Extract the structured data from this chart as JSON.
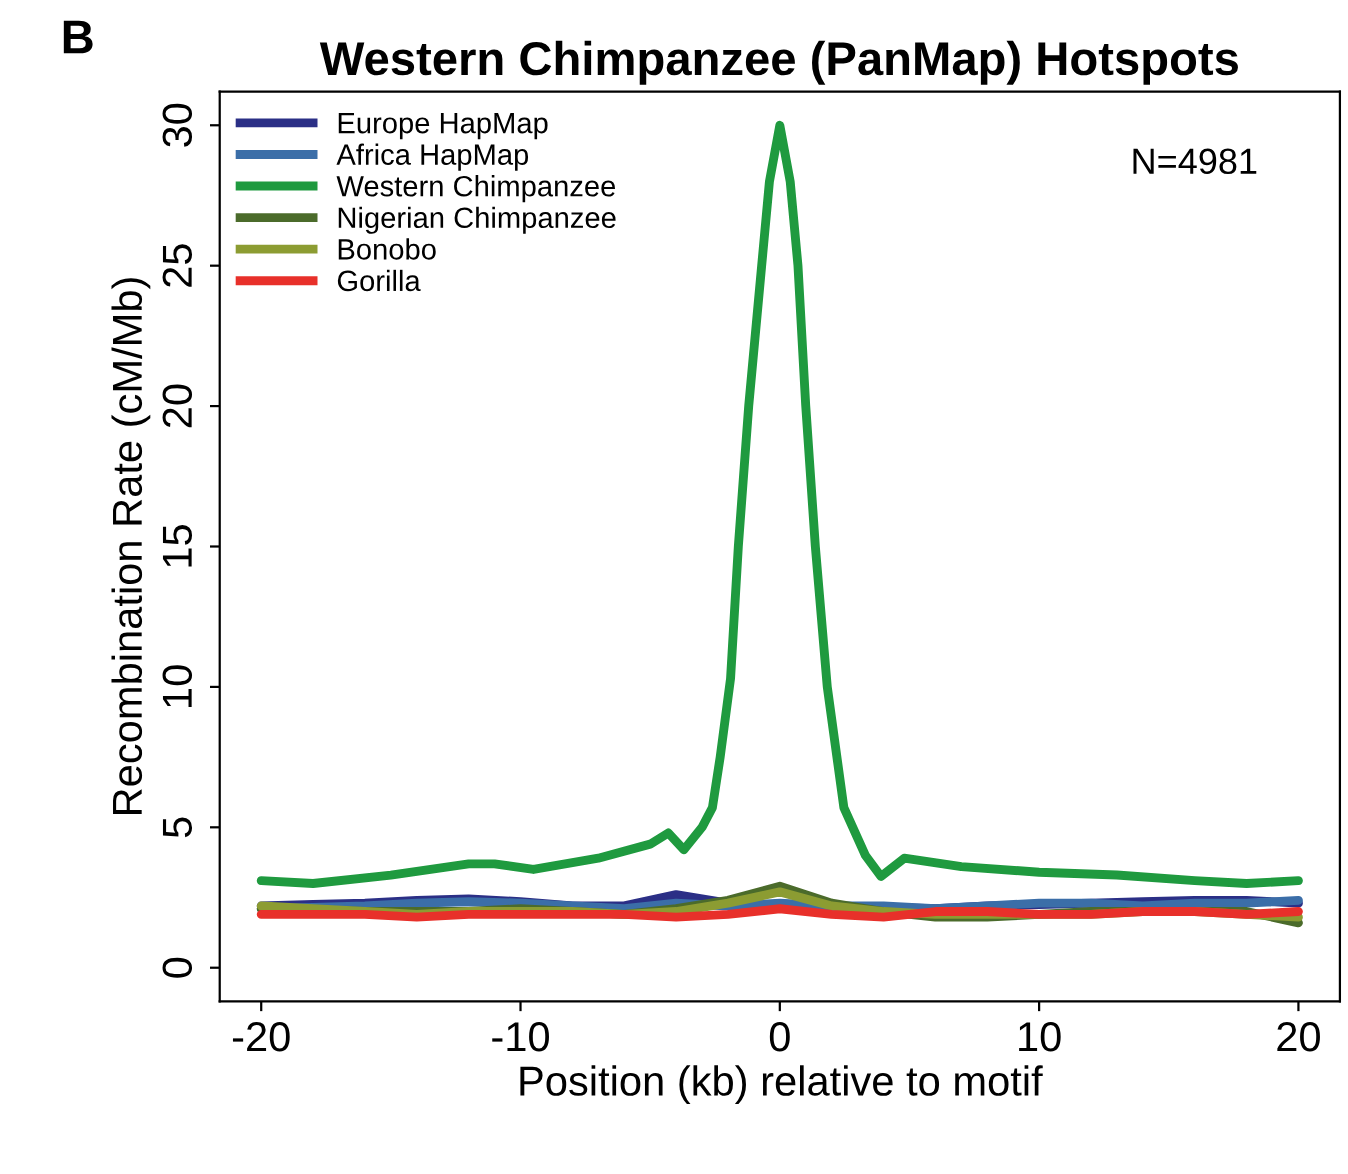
{
  "chart_data": {
    "type": "line",
    "title": "Western Chimpanzee (PanMap) Hotspots",
    "xlabel": "Position (kb) relative to motif",
    "ylabel": "Recombination Rate (cM/Mb)",
    "annotations": [
      "B",
      "N=4981"
    ],
    "xlim": [
      -21.6,
      21.6
    ],
    "ylim": [
      -1.2,
      31.2
    ],
    "xticks": [
      -20,
      -10,
      0,
      10,
      20
    ],
    "yticks": [
      0,
      5,
      10,
      15,
      20,
      25,
      30
    ],
    "grid": false,
    "legend": "top left",
    "line_style": "solid",
    "marker": "none",
    "series": [
      {
        "name": "Europe HapMap",
        "color": "#2b2f86",
        "x": [
          -20,
          -18,
          -16,
          -14,
          -12,
          -10,
          -8,
          -6,
          -4,
          -2,
          0,
          2,
          4,
          6,
          8,
          10,
          12,
          14,
          16,
          18,
          20
        ],
        "values": [
          2.2,
          2.25,
          2.3,
          2.4,
          2.45,
          2.35,
          2.2,
          2.2,
          2.6,
          2.3,
          2.2,
          2.2,
          2.15,
          2.1,
          2.2,
          2.25,
          2.3,
          2.35,
          2.4,
          2.4,
          2.3
        ]
      },
      {
        "name": "Africa HapMap",
        "color": "#3b6ea8",
        "x": [
          -20,
          -18,
          -16,
          -14,
          -12,
          -10,
          -8,
          -6,
          -4,
          -2,
          0,
          2,
          4,
          6,
          8,
          10,
          12,
          14,
          16,
          18,
          20
        ],
        "values": [
          2.1,
          2.15,
          2.2,
          2.3,
          2.35,
          2.3,
          2.2,
          2.1,
          2.3,
          2.2,
          2.3,
          2.2,
          2.2,
          2.1,
          2.2,
          2.3,
          2.3,
          2.2,
          2.3,
          2.3,
          2.4
        ]
      },
      {
        "name": "Western Chimpanzee",
        "color": "#1f9a3f",
        "x": [
          -20,
          -18,
          -15,
          -12,
          -11,
          -9.5,
          -7,
          -5,
          -4.3,
          -3.7,
          -3,
          -2.6,
          -2.3,
          -1.9,
          -1.6,
          -1.2,
          -0.7,
          -0.4,
          0,
          0.4,
          0.7,
          1.0,
          1.37,
          1.83,
          2.47,
          3.3,
          3.9,
          4.8,
          7,
          10,
          13,
          16,
          18,
          20
        ],
        "values": [
          3.1,
          3.0,
          3.3,
          3.7,
          3.7,
          3.5,
          3.9,
          4.4,
          4.8,
          4.2,
          5.0,
          5.7,
          7.5,
          10.3,
          15,
          20,
          25,
          28,
          30,
          28,
          25,
          20,
          15,
          10,
          5.7,
          4.0,
          3.25,
          3.9,
          3.6,
          3.4,
          3.3,
          3.1,
          3.0,
          3.1
        ]
      },
      {
        "name": "Nigerian Chimpanzee",
        "color": "#4b6b2b",
        "x": [
          -20,
          -18,
          -16,
          -14,
          -12,
          -10,
          -8,
          -6,
          -4,
          -2,
          0,
          2,
          4,
          6,
          8,
          10,
          12,
          14,
          16,
          18,
          20
        ],
        "values": [
          2.1,
          2.05,
          2.0,
          2.0,
          2.0,
          2.1,
          2.0,
          1.9,
          2.1,
          2.4,
          2.9,
          2.3,
          2.0,
          1.8,
          1.8,
          1.9,
          2.0,
          2.0,
          2.0,
          2.0,
          1.6
        ]
      },
      {
        "name": "Bonobo",
        "color": "#8c9c32",
        "x": [
          -20,
          -18,
          -16,
          -14,
          -12,
          -10,
          -8,
          -6,
          -4,
          -2,
          0,
          2,
          4,
          6,
          8,
          10,
          12,
          14,
          16,
          18,
          20
        ],
        "values": [
          2.2,
          2.1,
          2.0,
          1.9,
          2.0,
          2.0,
          2.0,
          1.9,
          2.0,
          2.3,
          2.7,
          2.2,
          2.0,
          1.9,
          1.9,
          1.9,
          1.9,
          2.0,
          2.0,
          1.9,
          1.8
        ]
      },
      {
        "name": "Gorilla",
        "color": "#e8302a",
        "x": [
          -20,
          -18,
          -16,
          -14,
          -12,
          -10,
          -8,
          -6,
          -4,
          -2,
          0,
          2,
          4,
          6,
          8,
          10,
          12,
          14,
          16,
          18,
          20
        ],
        "values": [
          1.9,
          1.9,
          1.9,
          1.8,
          1.9,
          1.9,
          1.9,
          1.9,
          1.8,
          1.9,
          2.1,
          1.9,
          1.8,
          2.0,
          2.0,
          1.9,
          1.9,
          2.0,
          2.0,
          1.9,
          2.0
        ]
      }
    ]
  }
}
